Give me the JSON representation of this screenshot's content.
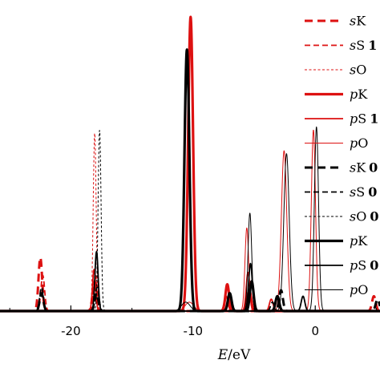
{
  "chart_data": {
    "type": "line",
    "xlabel_var": "E",
    "xlabel_unit": "/eV",
    "xlim": [
      -25.8,
      5.3
    ],
    "ylim": [
      0,
      1.02
    ],
    "x_ticks": [
      {
        "value": -20,
        "label": "-20"
      },
      {
        "value": -10,
        "label": "-10"
      },
      {
        "value": 0,
        "label": "0"
      }
    ],
    "colors": {
      "red": "#dd1111",
      "black": "#000000"
    },
    "legend": [
      {
        "italic": "s",
        "text": "K",
        "extra": "",
        "color": "#dd1111",
        "style": "thick-dash"
      },
      {
        "italic": "s",
        "text": "S",
        "extra": "1",
        "color": "#dd1111",
        "style": "medium-dash"
      },
      {
        "italic": "s",
        "text": "O",
        "extra": "",
        "color": "#dd1111",
        "style": "thin-dash"
      },
      {
        "italic": "p",
        "text": "K",
        "extra": "",
        "color": "#dd1111",
        "style": "thick-solid"
      },
      {
        "italic": "p",
        "text": "S",
        "extra": "1",
        "color": "#dd1111",
        "style": "medium-solid"
      },
      {
        "italic": "p",
        "text": "O",
        "extra": "",
        "color": "#dd1111",
        "style": "thin-solid"
      },
      {
        "italic": "s",
        "text": "K",
        "extra": "0",
        "color": "#000000",
        "style": "thick-dash"
      },
      {
        "italic": "s",
        "text": "S",
        "extra": "0",
        "color": "#000000",
        "style": "medium-dash"
      },
      {
        "italic": "s",
        "text": "O",
        "extra": "0",
        "color": "#000000",
        "style": "thin-dash"
      },
      {
        "italic": "p",
        "text": "K",
        "extra": "",
        "color": "#000000",
        "style": "thick-solid"
      },
      {
        "italic": "p",
        "text": "S",
        "extra": "0",
        "color": "#000000",
        "style": "medium-solid"
      },
      {
        "italic": "p",
        "text": "O",
        "extra": "",
        "color": "#000000",
        "style": "thin-solid"
      }
    ],
    "series": [
      {
        "color": "#dd1111",
        "style": "thick-dash",
        "peaks": [
          [
            -22.5,
            0.18,
            0.15
          ],
          [
            -18.1,
            0.08,
            0.15
          ],
          [
            4.8,
            0.05,
            0.15
          ]
        ]
      },
      {
        "color": "#dd1111",
        "style": "medium-dash",
        "peaks": [
          [
            -22.3,
            0.12,
            0.15
          ],
          [
            -18.0,
            0.12,
            0.15
          ]
        ]
      },
      {
        "color": "#dd1111",
        "style": "thin-dash",
        "peaks": [
          [
            -18.05,
            0.6,
            0.12
          ]
        ]
      },
      {
        "color": "#dd1111",
        "style": "thick-solid",
        "peaks": [
          [
            -10.2,
            0.99,
            0.2
          ],
          [
            -7.2,
            0.09,
            0.15
          ],
          [
            -5.4,
            0.07,
            0.15
          ]
        ]
      },
      {
        "color": "#dd1111",
        "style": "medium-solid",
        "peaks": [
          [
            -18.1,
            0.14,
            0.13
          ],
          [
            -7.3,
            0.05,
            0.15
          ],
          [
            -5.5,
            0.13,
            0.15
          ],
          [
            -3.6,
            0.04,
            0.15
          ]
        ]
      },
      {
        "color": "#dd1111",
        "style": "thin-solid",
        "peaks": [
          [
            -10.3,
            0.03,
            0.35
          ],
          [
            -5.6,
            0.28,
            0.15
          ],
          [
            -2.55,
            0.54,
            0.22
          ],
          [
            -0.15,
            0.61,
            0.17
          ]
        ]
      },
      {
        "color": "#000000",
        "style": "thick-dash",
        "peaks": [
          [
            -22.4,
            0.06,
            0.15
          ],
          [
            -17.9,
            0.06,
            0.15
          ],
          [
            -2.8,
            0.07,
            0.15
          ],
          [
            5.1,
            0.04,
            0.15
          ]
        ]
      },
      {
        "color": "#000000",
        "style": "medium-dash",
        "peaks": [
          [
            -22.4,
            0.08,
            0.15
          ],
          [
            -17.85,
            0.08,
            0.15
          ],
          [
            -3.5,
            0.03,
            0.15
          ]
        ]
      },
      {
        "color": "#000000",
        "style": "thin-dash",
        "peaks": [
          [
            -17.65,
            0.61,
            0.12
          ]
        ]
      },
      {
        "color": "#000000",
        "style": "thick-solid",
        "peaks": [
          [
            -10.5,
            0.88,
            0.2
          ],
          [
            -7.0,
            0.06,
            0.15
          ],
          [
            -5.2,
            0.1,
            0.15
          ],
          [
            -3.1,
            0.05,
            0.15
          ]
        ]
      },
      {
        "color": "#000000",
        "style": "medium-solid",
        "peaks": [
          [
            -17.9,
            0.2,
            0.13
          ],
          [
            -5.3,
            0.16,
            0.15
          ],
          [
            -1.0,
            0.05,
            0.15
          ]
        ]
      },
      {
        "color": "#000000",
        "style": "thin-solid",
        "peaks": [
          [
            -10.6,
            0.03,
            0.35
          ],
          [
            -5.35,
            0.33,
            0.15
          ],
          [
            -2.35,
            0.53,
            0.22
          ],
          [
            0.1,
            0.62,
            0.17
          ]
        ]
      }
    ]
  }
}
